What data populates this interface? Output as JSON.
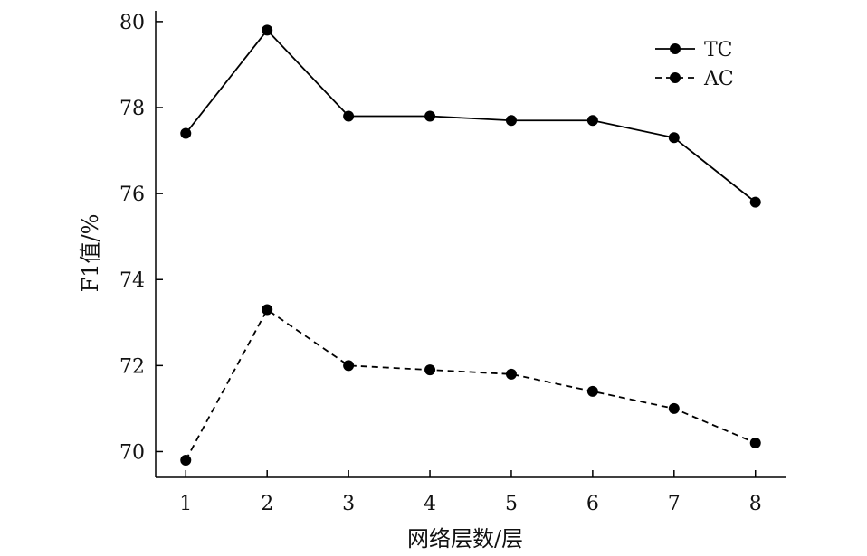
{
  "chart_data": {
    "type": "line",
    "title": "",
    "xlabel": "网络层数/层",
    "ylabel": "F1值/%",
    "x": [
      1,
      2,
      3,
      4,
      5,
      6,
      7,
      8
    ],
    "xticks": [
      "1",
      "2",
      "3",
      "4",
      "5",
      "6",
      "7",
      "8"
    ],
    "yticks": [
      "70",
      "72",
      "74",
      "76",
      "78",
      "80"
    ],
    "ylim": [
      69.4,
      80.25
    ],
    "xlim": [
      0.63,
      8.37
    ],
    "grid": false,
    "legend_position": "top-right",
    "series": [
      {
        "name": "TC",
        "style": "solid",
        "color": "#000000",
        "values": [
          77.4,
          79.8,
          77.8,
          77.8,
          77.7,
          77.7,
          77.3,
          75.8
        ]
      },
      {
        "name": "AC",
        "style": "dashed",
        "color": "#000000",
        "values": [
          69.8,
          73.3,
          72.0,
          71.9,
          71.8,
          71.4,
          71.0,
          70.2
        ]
      }
    ]
  }
}
